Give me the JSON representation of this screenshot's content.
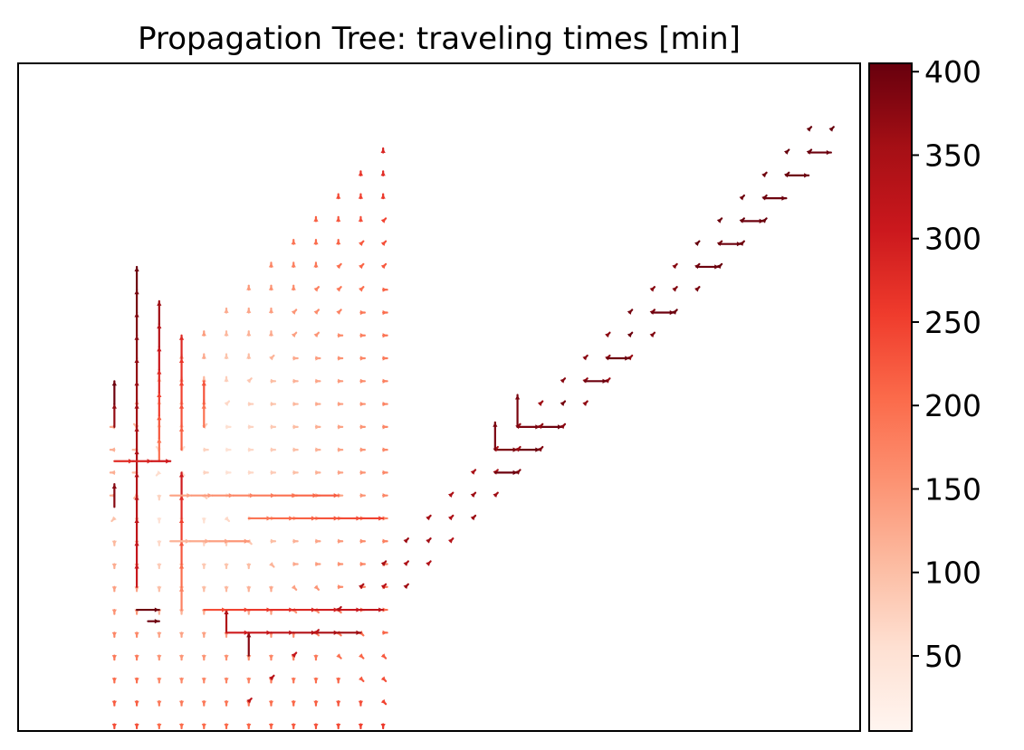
{
  "chart_data": {
    "type": "scatter",
    "title": "Propagation Tree: traveling times [min]",
    "xlabel": "",
    "ylabel": "",
    "xticks": "hidden",
    "yticks": "hidden",
    "grid": false,
    "colormap": "Reds",
    "colorbar": {
      "label": "",
      "range": [
        5,
        405
      ],
      "ticks": [
        50,
        100,
        150,
        200,
        250,
        300,
        350,
        400
      ],
      "tick_labels": [
        "50",
        "100",
        "150",
        "200",
        "250",
        "300",
        "350",
        "400"
      ],
      "colors": [
        "#fff5f0",
        "#fee0d2",
        "#fcbba1",
        "#fc9272",
        "#fb6a4a",
        "#ef3b2c",
        "#cb181d",
        "#a50f15",
        "#67000d"
      ]
    },
    "source_cell": [
      6.5,
      11.5
    ],
    "grid_cells": {
      "x_range": [
        -0.3,
        37.3
      ],
      "y_range": [
        -0.3,
        28.9
      ],
      "left_wedge": {
        "x_min": 4,
        "x_max": 16,
        "y_min": 0,
        "y_max": 26,
        "diagonal_edge": "x = y - 9",
        "time_formula": "6 + 17 * distance_from_source"
      },
      "right_band": {
        "rows_from": [
          1,
          26
        ],
        "x_formula": "y + 9",
        "time_range": [
          300,
          400
        ]
      }
    },
    "long_edges": [
      {
        "from": [
          4,
          11.5
        ],
        "to": [
          6.5,
          11.5
        ],
        "time_end": 300
      },
      {
        "from": [
          6.5,
          8
        ],
        "to": [
          10,
          8
        ],
        "time_end": 150
      },
      {
        "from": [
          6.5,
          10
        ],
        "to": [
          14,
          10
        ],
        "time_end": 220
      },
      {
        "from": [
          10,
          9
        ],
        "to": [
          16,
          9
        ],
        "time_end": 250
      },
      {
        "from": [
          8,
          5
        ],
        "to": [
          16,
          5
        ],
        "time_end": 320
      },
      {
        "from": [
          9,
          4
        ],
        "to": [
          15,
          4
        ],
        "time_end": 360
      },
      {
        "from": [
          5,
          5
        ],
        "to": [
          6,
          5
        ],
        "time_end": 400
      },
      {
        "from": [
          5.5,
          4.5
        ],
        "to": [
          6,
          4.5
        ],
        "time_end": 400
      },
      {
        "from": [
          22,
          13
        ],
        "to": [
          24,
          13
        ],
        "time_end": 400
      },
      {
        "from": [
          21,
          12
        ],
        "to": [
          23,
          12
        ],
        "time_end": 400
      }
    ]
  }
}
